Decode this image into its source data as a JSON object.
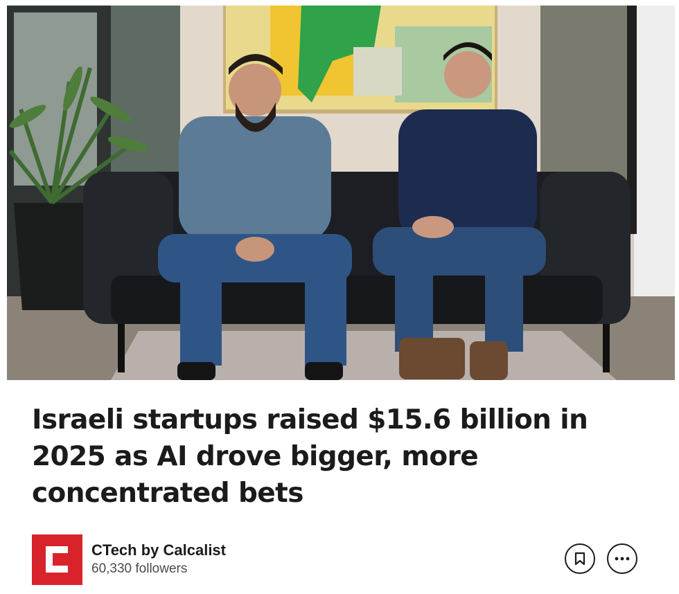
{
  "hero_image": {
    "description_icon": "photo-two-founders-on-couch"
  },
  "article": {
    "headline": "Israeli startups raised $15.6 billion in 2025 as AI drove bigger, more concentrated bets"
  },
  "publisher": {
    "name": "CTech by Calcalist",
    "followers": "60,330 followers",
    "logo_icon": "ctech-logo-icon",
    "logo_color": "#d8232a"
  },
  "actions": {
    "save_icon": "bookmark-icon",
    "more_icon": "more-horizontal-icon"
  }
}
